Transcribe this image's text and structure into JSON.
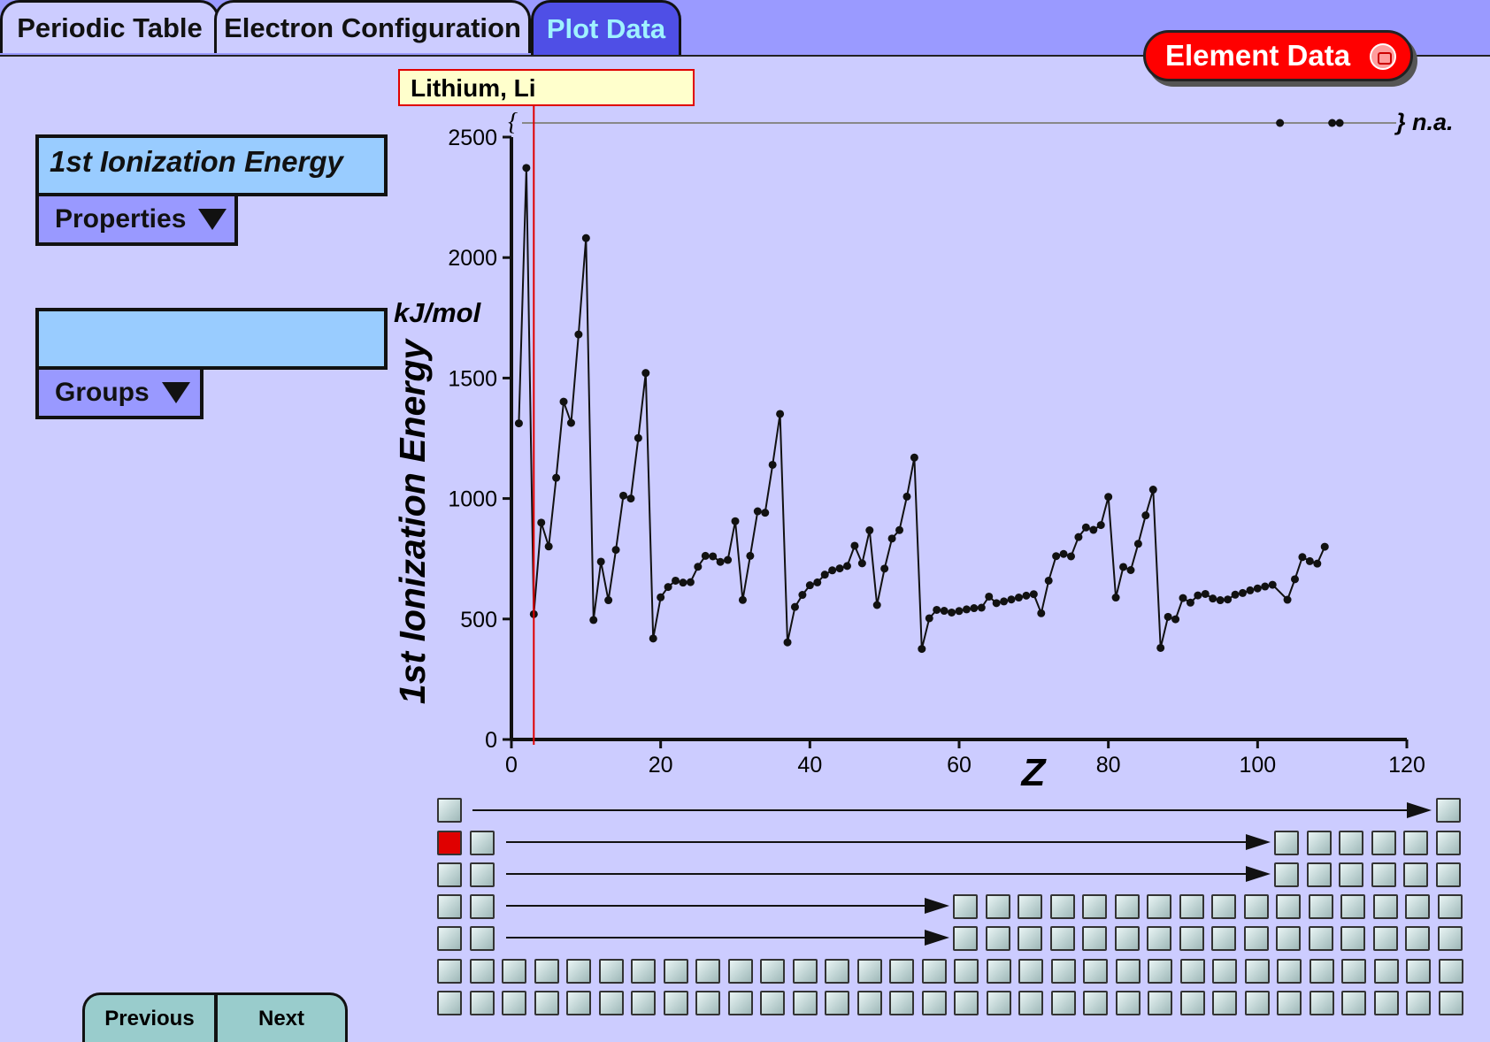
{
  "tabs": [
    {
      "label": "Periodic Table",
      "active": false
    },
    {
      "label": "Electron Configuration",
      "active": false
    },
    {
      "label": "Plot Data",
      "active": true
    }
  ],
  "element_data_button": {
    "label": "Element Data",
    "icon": "popup-window-icon"
  },
  "property_field": {
    "value": "1st Ionization Energy"
  },
  "properties_dropdown": {
    "label": "Properties"
  },
  "group_field": {
    "value": ""
  },
  "groups_dropdown": {
    "label": "Groups"
  },
  "unit_label": "kJ/mol",
  "hover_tooltip": {
    "text": "Lithium, Li",
    "cursor_z": 3
  },
  "nav": {
    "previous": "Previous",
    "next": "Next"
  },
  "colors": {
    "selected": "#e00000",
    "accent_tab": "#4f4fe6",
    "background": "#ccccff"
  },
  "chart_data": {
    "type": "line",
    "ylabel": "1st Ionization Energy",
    "xlabel": "Z",
    "xlim": [
      0,
      120
    ],
    "ylim": [
      0,
      2500
    ],
    "xticks": [
      0,
      20,
      40,
      60,
      80,
      100,
      120
    ],
    "yticks": [
      0,
      500,
      1000,
      1500,
      2000,
      2500
    ],
    "na_label": "} n.a.",
    "na_open": "{",
    "na_points": [
      103,
      110,
      111
    ],
    "x": [
      1,
      2,
      3,
      4,
      5,
      6,
      7,
      8,
      9,
      10,
      11,
      12,
      13,
      14,
      15,
      16,
      17,
      18,
      19,
      20,
      21,
      22,
      23,
      24,
      25,
      26,
      27,
      28,
      29,
      30,
      31,
      32,
      33,
      34,
      35,
      36,
      37,
      38,
      39,
      40,
      41,
      42,
      43,
      44,
      45,
      46,
      47,
      48,
      49,
      50,
      51,
      52,
      53,
      54,
      55,
      56,
      57,
      58,
      59,
      60,
      61,
      62,
      63,
      64,
      65,
      66,
      67,
      68,
      69,
      70,
      71,
      72,
      73,
      74,
      75,
      76,
      77,
      78,
      79,
      80,
      81,
      82,
      83,
      84,
      85,
      86,
      87,
      88,
      89,
      90,
      91,
      92,
      93,
      94,
      95,
      96,
      97,
      98,
      99,
      100,
      101,
      102,
      104,
      105,
      106,
      107,
      108,
      109
    ],
    "y": [
      1312,
      2372,
      520,
      900,
      801,
      1086,
      1402,
      1314,
      1681,
      2081,
      496,
      738,
      578,
      787,
      1012,
      1000,
      1251,
      1521,
      419,
      590,
      633,
      659,
      651,
      653,
      717,
      762,
      760,
      737,
      745,
      906,
      579,
      762,
      947,
      941,
      1140,
      1351,
      403,
      550,
      600,
      640,
      652,
      684,
      702,
      710,
      720,
      804,
      731,
      868,
      558,
      709,
      834,
      869,
      1008,
      1170,
      376,
      503,
      538,
      534,
      527,
      533,
      540,
      545,
      547,
      593,
      566,
      573,
      581,
      589,
      597,
      603,
      524,
      659,
      761,
      770,
      760,
      840,
      880,
      870,
      890,
      1007,
      589,
      716,
      703,
      812,
      930,
      1037,
      380,
      509,
      499,
      587,
      568,
      598,
      604,
      585,
      578,
      581,
      601,
      608,
      619,
      627,
      635,
      642,
      580,
      665,
      757,
      740,
      730,
      800
    ]
  },
  "periodic_selector": {
    "selected_element": "Li"
  }
}
